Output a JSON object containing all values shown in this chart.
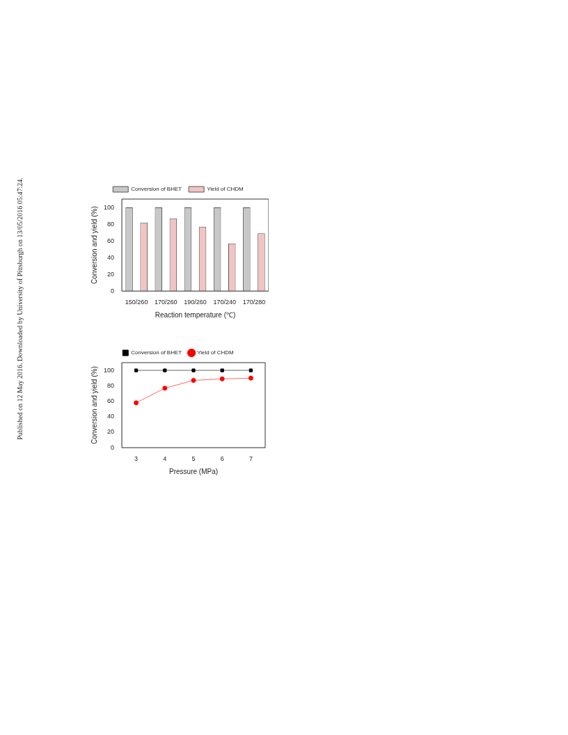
{
  "chart_data": [
    {
      "type": "bar",
      "categories": [
        "150/260",
        "170/260",
        "190/260",
        "170/240",
        "170/280"
      ],
      "xlabel": "Reaction temperature (℃)",
      "ylabel": "Conversion and yield (%)",
      "ylim": [
        0,
        110
      ],
      "yticks": [
        0,
        20,
        40,
        60,
        80,
        100
      ],
      "grid": false,
      "legend": "top",
      "series": [
        {
          "name": "Conversion of BHET",
          "color": "#c8c8c8",
          "values": [
            100,
            100,
            100,
            100,
            100
          ]
        },
        {
          "name": "Yield of CHDM",
          "color": "#f2c4c4",
          "values": [
            82,
            87,
            77,
            57,
            69
          ]
        }
      ],
      "annotations": [
        "Published on 12 May 2016. Downloaded by University of Pittsburgh on 13/05/2016 05:47:24."
      ]
    },
    {
      "type": "line",
      "x": [
        3,
        4,
        5,
        6,
        7
      ],
      "xlabel": "Pressure (MPa)",
      "ylabel": "Conversion and yield (%)",
      "xlim": [
        2.5,
        7.5
      ],
      "xticks": [
        3,
        4,
        5,
        6,
        7
      ],
      "ylim": [
        0,
        110
      ],
      "yticks": [
        0,
        20,
        40,
        60,
        80,
        100
      ],
      "grid": false,
      "legend": "top",
      "series": [
        {
          "name": "Conversion of BHET",
          "color": "#000000",
          "marker": "square",
          "values": [
            100,
            100,
            100,
            100,
            100
          ]
        },
        {
          "name": "Yield of CHDM",
          "color": "#ff0000",
          "marker": "circle",
          "values": [
            58,
            77,
            87,
            89,
            90
          ]
        }
      ]
    }
  ]
}
